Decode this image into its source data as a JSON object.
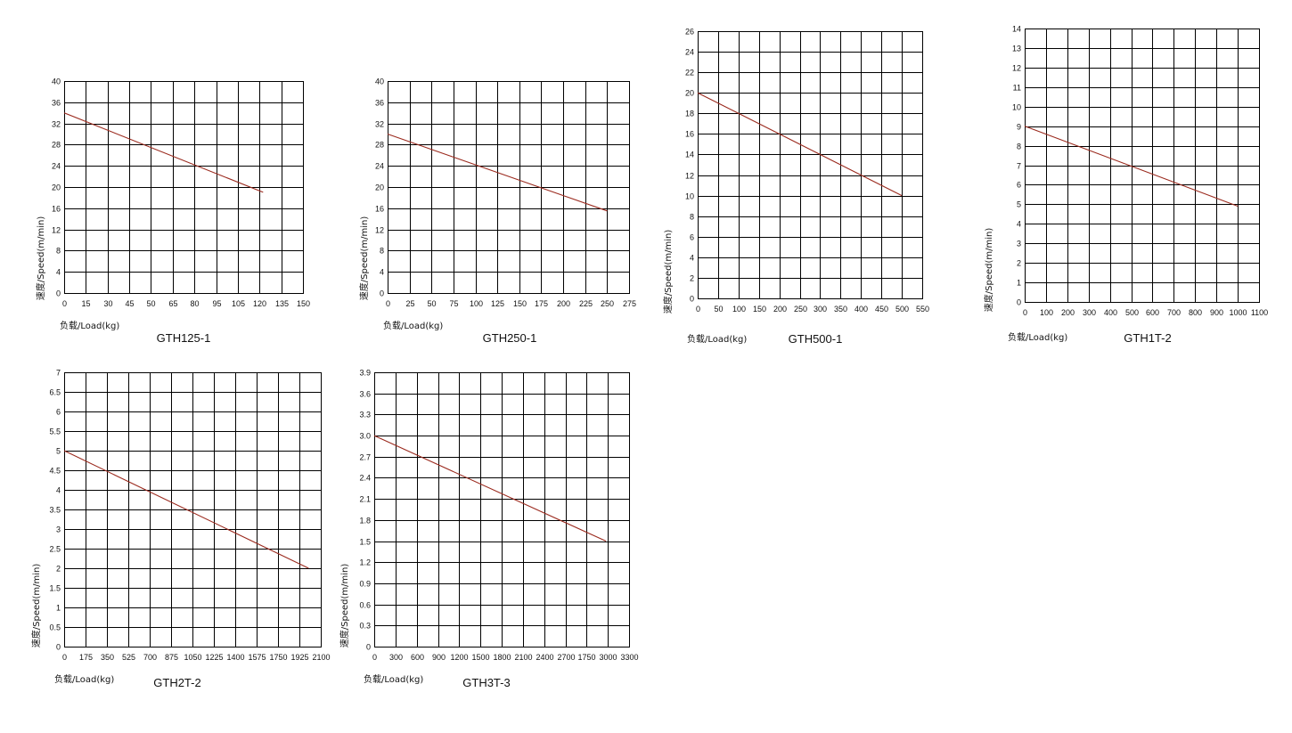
{
  "chart_data": [
    {
      "type": "line",
      "title": "GTH125-1",
      "xlabel": "负载/Load(kg)",
      "ylabel": "速度/Speed(m/min)",
      "x_ticks": [
        "0",
        "15",
        "30",
        "45",
        "50",
        "65",
        "80",
        "95",
        "105",
        "120",
        "135",
        "150"
      ],
      "y_ticks": [
        "0",
        "4",
        "8",
        "12",
        "16",
        "20",
        "24",
        "28",
        "32",
        "36",
        "40"
      ],
      "xlim": [
        0,
        150
      ],
      "ylim": [
        0,
        40
      ],
      "grid": true,
      "color": "#9b2a1e",
      "series": [
        {
          "x": [
            0,
            125
          ],
          "y": [
            34,
            19
          ]
        }
      ]
    },
    {
      "type": "line",
      "title": "GTH250-1",
      "xlabel": "负载/Load(kg)",
      "ylabel": "速度/Speed(m/min)",
      "x_ticks": [
        "0",
        "25",
        "50",
        "75",
        "100",
        "125",
        "150",
        "175",
        "200",
        "225",
        "250",
        "275"
      ],
      "y_ticks": [
        "0",
        "4",
        "8",
        "12",
        "16",
        "20",
        "24",
        "28",
        "32",
        "36",
        "40"
      ],
      "xlim": [
        0,
        275
      ],
      "ylim": [
        0,
        40
      ],
      "grid": true,
      "color": "#9b2a1e",
      "series": [
        {
          "x": [
            0,
            250
          ],
          "y": [
            30,
            15.5
          ]
        }
      ]
    },
    {
      "type": "line",
      "title": "GTH500-1",
      "xlabel": "负载/Load(kg)",
      "ylabel": "速度/Speed(m/min)",
      "x_ticks": [
        "0",
        "50",
        "100",
        "150",
        "200",
        "250",
        "300",
        "350",
        "400",
        "450",
        "500",
        "550"
      ],
      "y_ticks": [
        "0",
        "2",
        "4",
        "6",
        "8",
        "10",
        "12",
        "14",
        "16",
        "18",
        "20",
        "22",
        "24",
        "26"
      ],
      "xlim": [
        0,
        550
      ],
      "ylim": [
        0,
        26
      ],
      "grid": true,
      "color": "#9b2a1e",
      "series": [
        {
          "x": [
            0,
            500
          ],
          "y": [
            20,
            10
          ]
        }
      ]
    },
    {
      "type": "line",
      "title": "GTH1T-2",
      "xlabel": "负载/Load(kg)",
      "ylabel": "速度/Speed(m/min)",
      "x_ticks": [
        "0",
        "100",
        "200",
        "300",
        "400",
        "500",
        "600",
        "700",
        "800",
        "900",
        "1000",
        "1100"
      ],
      "y_ticks": [
        "0",
        "1",
        "2",
        "3",
        "4",
        "5",
        "6",
        "7",
        "8",
        "9",
        "10",
        "11",
        "12",
        "13",
        "14"
      ],
      "xlim": [
        0,
        1100
      ],
      "ylim": [
        0,
        14
      ],
      "grid": true,
      "color": "#9b2a1e",
      "series": [
        {
          "x": [
            0,
            1000
          ],
          "y": [
            9,
            4.9
          ]
        }
      ]
    },
    {
      "type": "line",
      "title": "GTH2T-2",
      "xlabel": "负载/Load(kg)",
      "ylabel": "速度/Speed(m/min)",
      "x_ticks": [
        "0",
        "175",
        "350",
        "525",
        "700",
        "875",
        "1050",
        "1225",
        "1400",
        "1575",
        "1750",
        "1925",
        "2100"
      ],
      "y_ticks": [
        "0",
        "0.5",
        "1",
        "1.5",
        "2",
        "2.5",
        "3",
        "3.5",
        "4",
        "4.5",
        "5",
        "5.5",
        "6",
        "6.5",
        "7"
      ],
      "xlim": [
        0,
        2100
      ],
      "ylim": [
        0,
        7
      ],
      "grid": true,
      "color": "#9b2a1e",
      "series": [
        {
          "x": [
            0,
            2000
          ],
          "y": [
            5,
            2
          ]
        }
      ]
    },
    {
      "type": "line",
      "title": "GTH3T-3",
      "xlabel": "负载/Load(kg)",
      "ylabel": "速度/Speed(m/min)",
      "x_ticks": [
        "0",
        "300",
        "600",
        "900",
        "1200",
        "1500",
        "1800",
        "2100",
        "2400",
        "2700",
        "1750",
        "3000",
        "3300"
      ],
      "y_ticks": [
        "0",
        "0.3",
        "0.6",
        "0.9",
        "1.2",
        "1.5",
        "1.8",
        "2.1",
        "2.4",
        "2.7",
        "3.0",
        "3.3",
        "3.6",
        "3.9"
      ],
      "xlim": [
        0,
        3300
      ],
      "ylim": [
        0,
        3.9
      ],
      "grid": true,
      "color": "#9b2a1e",
      "series": [
        {
          "x": [
            0,
            3000
          ],
          "y": [
            3.0,
            1.5
          ]
        }
      ]
    }
  ]
}
